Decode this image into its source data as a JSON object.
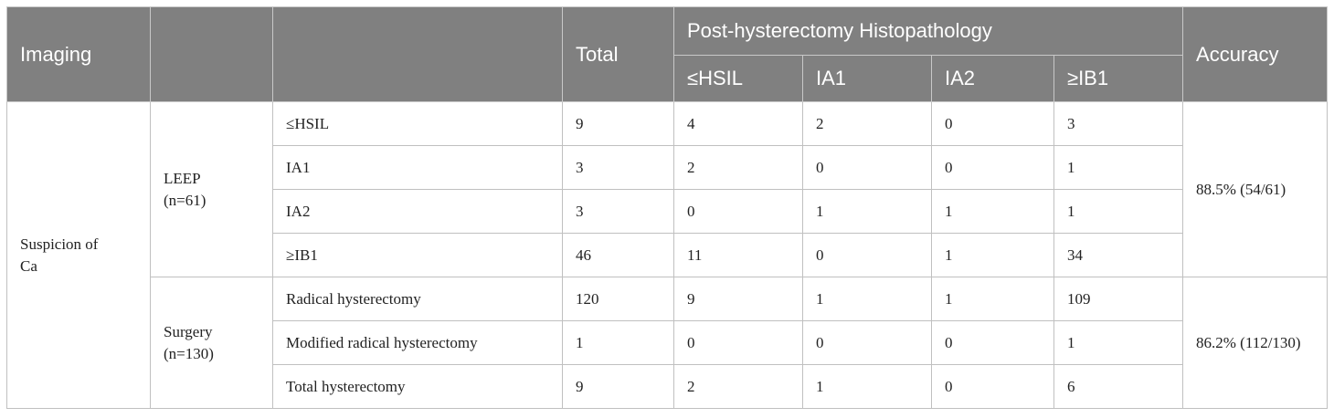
{
  "header": {
    "imaging": "Imaging",
    "group": "",
    "procedure": "",
    "total": "Total",
    "histopathology": "Post-hysterectomy Histopathology",
    "accuracy": "Accuracy",
    "sub": [
      "≤HSIL",
      "IA1",
      "IA2",
      "≥IB1"
    ]
  },
  "imaging_category": "Suspicion of Ca",
  "groups": [
    {
      "label": "LEEP (n=61)",
      "accuracy": "88.5% (54/61)",
      "rows": [
        {
          "name": "≤HSIL",
          "total": "9",
          "hsil": "4",
          "ia1": "2",
          "ia2": "0",
          "ib1": "3"
        },
        {
          "name": "IA1",
          "total": "3",
          "hsil": "2",
          "ia1": "0",
          "ia2": "0",
          "ib1": "1"
        },
        {
          "name": "IA2",
          "total": "3",
          "hsil": "0",
          "ia1": "1",
          "ia2": "1",
          "ib1": "1"
        },
        {
          "name": "≥IB1",
          "total": "46",
          "hsil": "11",
          "ia1": "0",
          "ia2": "1",
          "ib1": "34"
        }
      ]
    },
    {
      "label": "Surgery (n=130)",
      "accuracy": "86.2% (112/130)",
      "rows": [
        {
          "name": "Radical hysterectomy",
          "total": "120",
          "hsil": "9",
          "ia1": "1",
          "ia2": "1",
          "ib1": "109"
        },
        {
          "name": "Modified radical hysterectomy",
          "total": "1",
          "hsil": "0",
          "ia1": "0",
          "ia2": "0",
          "ib1": "1"
        },
        {
          "name": "Total hysterectomy",
          "total": "9",
          "hsil": "2",
          "ia1": "1",
          "ia2": "0",
          "ib1": "6"
        }
      ]
    }
  ],
  "colors": {
    "header_bg": "#808080",
    "header_text": "#ffffff",
    "border": "#c0c0c0"
  }
}
